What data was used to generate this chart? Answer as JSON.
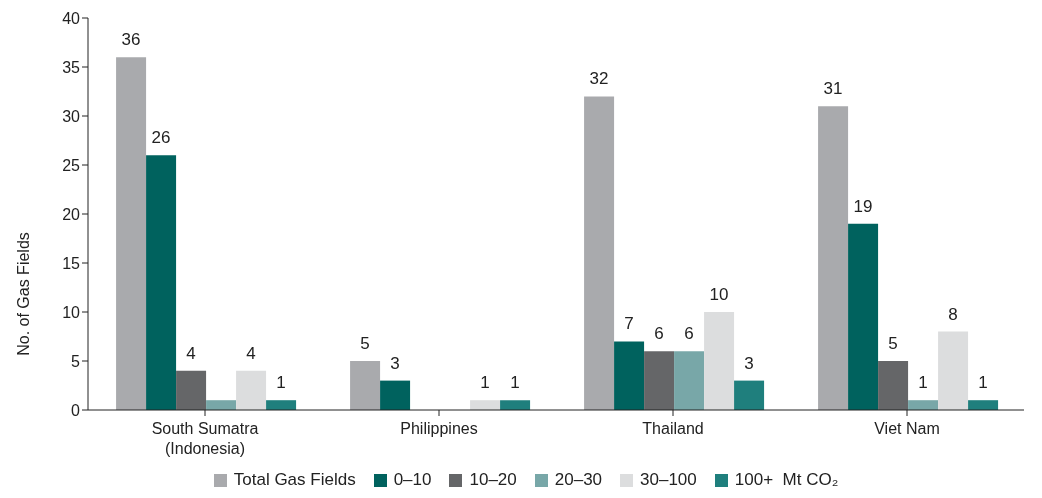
{
  "chart_data": {
    "type": "bar",
    "ylabel": "No. of Gas Fields",
    "categories": [
      "South Sumatra (Indonesia)",
      "Philippines",
      "Thailand",
      "Viet Nam"
    ],
    "series": [
      {
        "name": "Total Gas Fields",
        "color": "#a9aaad",
        "values": [
          36,
          5,
          32,
          31
        ],
        "value_labels": [
          "36",
          "5",
          "32",
          "31"
        ]
      },
      {
        "name": "0–10",
        "color": "#00625e",
        "values": [
          26,
          3,
          7,
          19
        ],
        "value_labels": [
          "26",
          "3",
          "7",
          "19"
        ]
      },
      {
        "name": "10–20",
        "color": "#656668",
        "values": [
          4,
          0,
          6,
          5
        ],
        "value_labels": [
          "4",
          null,
          "6",
          "5"
        ]
      },
      {
        "name": "20–30",
        "color": "#78a7a8",
        "values": [
          1,
          0,
          6,
          1
        ],
        "value_labels": [
          null,
          null,
          "6",
          "1"
        ]
      },
      {
        "name": "30–100",
        "color": "#dcddde",
        "values": [
          4,
          1,
          10,
          8
        ],
        "value_labels": [
          "4",
          "1",
          "10",
          "8"
        ]
      },
      {
        "name": "100+  Mt CO₂",
        "color": "#1f7f7d",
        "values": [
          1,
          1,
          3,
          1
        ],
        "value_labels": [
          "1",
          "1",
          "3",
          "1"
        ]
      }
    ],
    "ylim": [
      0,
      40
    ],
    "yticks": [
      0,
      5,
      10,
      15,
      20,
      25,
      30,
      35,
      40
    ],
    "grid": false,
    "legend": "bottom"
  }
}
